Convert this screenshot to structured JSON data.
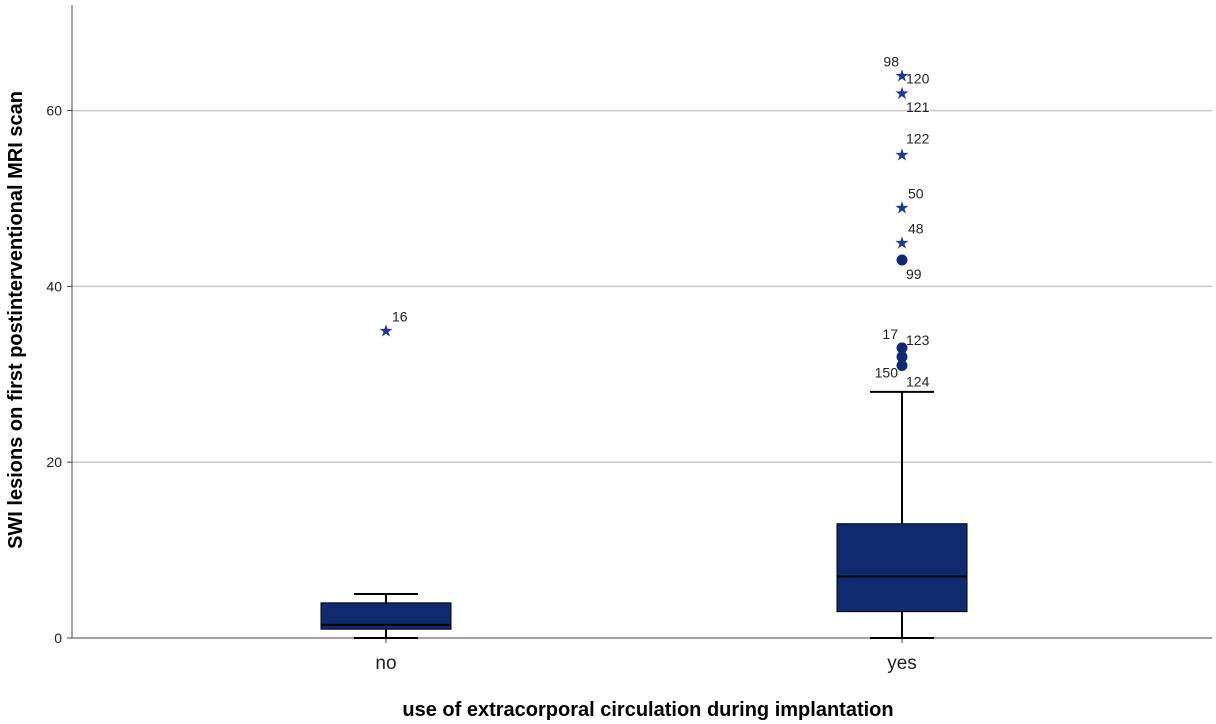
{
  "chart_data": {
    "type": "boxplot",
    "xlabel": "use of extracorporal circulation during implantation",
    "ylabel": "SWI lesions on first postinterventional MRI scan",
    "ylim": [
      0,
      72
    ],
    "yticks": [
      0,
      20,
      40,
      60
    ],
    "grid": true,
    "box_color": "#0F2A6E",
    "outlier_color": "#1F3A8A",
    "categories": [
      "no",
      "yes"
    ],
    "boxes": [
      {
        "category": "no",
        "min": 0,
        "q1": 1,
        "median": 1.5,
        "q3": 4,
        "max": 5,
        "outliers": [
          {
            "value": 35,
            "kind": "extreme",
            "labels": [
              "16"
            ]
          }
        ]
      },
      {
        "category": "yes",
        "min": 0,
        "q1": 3,
        "median": 7,
        "q3": 13,
        "max": 28,
        "outliers": [
          {
            "value": 64,
            "kind": "extreme",
            "labels": [
              "98",
              "120"
            ]
          },
          {
            "value": 62,
            "kind": "extreme",
            "labels": [
              "121"
            ]
          },
          {
            "value": 55,
            "kind": "extreme",
            "labels": [
              "122"
            ]
          },
          {
            "value": 49,
            "kind": "extreme",
            "labels": [
              "50"
            ]
          },
          {
            "value": 45,
            "kind": "extreme",
            "labels": [
              "48"
            ]
          },
          {
            "value": 43,
            "kind": "outlier",
            "labels": [
              "99"
            ]
          },
          {
            "value": 33,
            "kind": "outlier",
            "labels": [
              "17",
              "123"
            ]
          },
          {
            "value": 32,
            "kind": "outlier",
            "labels": []
          },
          {
            "value": 31,
            "kind": "outlier",
            "labels": [
              "150",
              "124"
            ]
          }
        ]
      }
    ]
  }
}
